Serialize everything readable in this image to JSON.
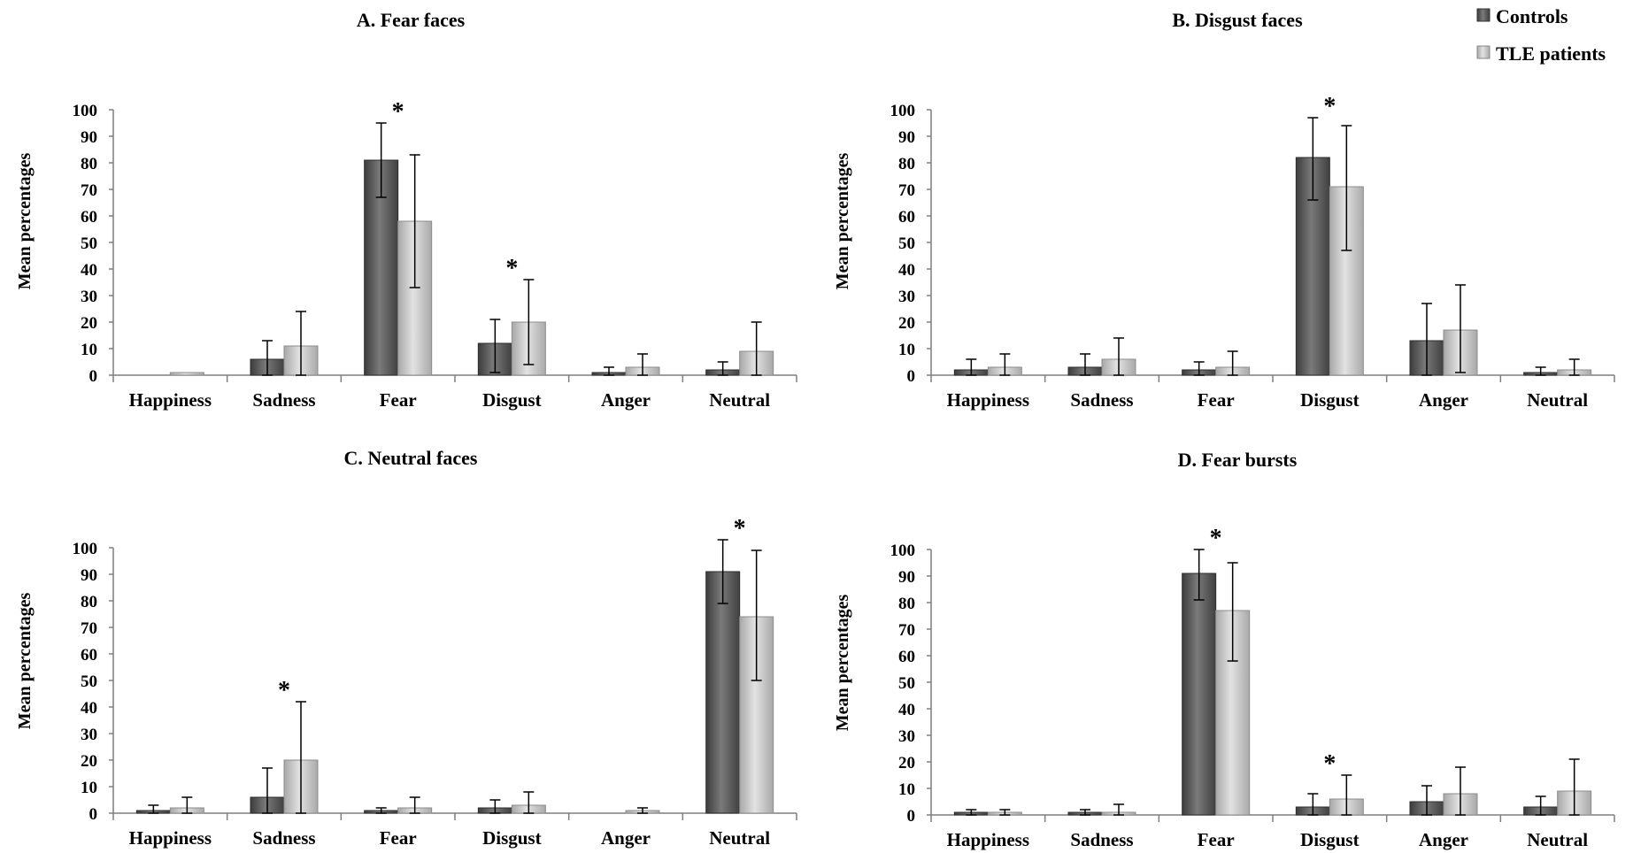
{
  "colors": {
    "controls": "#595959",
    "tle": "#bfbfbf",
    "axis": "#7f7f7f"
  },
  "legend": {
    "position": "top-right",
    "items": [
      {
        "name": "Controls",
        "color": "#595959"
      },
      {
        "name": "TLE patients",
        "color": "#bfbfbf"
      }
    ]
  },
  "chart_data": [
    {
      "type": "bar",
      "title": "A. Fear faces",
      "ylabel": "Mean percentages",
      "ylim": [
        0,
        100
      ],
      "yticks": [
        "0",
        "10",
        "20",
        "30",
        "40",
        "50",
        "60",
        "70",
        "80",
        "90",
        "100"
      ],
      "categories": [
        "Happiness",
        "Sadness",
        "Fear",
        "Disgust",
        "Anger",
        "Neutral"
      ],
      "series": [
        {
          "name": "Controls",
          "values": [
            0,
            6,
            81,
            12,
            1,
            2
          ],
          "err_low": [
            0,
            0,
            67,
            1,
            0,
            0
          ],
          "err_high": [
            0,
            13,
            95,
            21,
            3,
            5
          ]
        },
        {
          "name": "TLE patients",
          "values": [
            1,
            11,
            58,
            20,
            3,
            9
          ],
          "err_low": [
            0,
            0,
            33,
            4,
            0,
            0
          ],
          "err_high": [
            0,
            24,
            83,
            36,
            8,
            20
          ]
        }
      ],
      "significance": [
        false,
        false,
        true,
        true,
        false,
        false
      ]
    },
    {
      "type": "bar",
      "title": "B. Disgust faces",
      "ylabel": "Mean percentages",
      "ylim": [
        0,
        100
      ],
      "yticks": [
        "0",
        "10",
        "20",
        "30",
        "40",
        "50",
        "60",
        "70",
        "80",
        "90",
        "100"
      ],
      "categories": [
        "Happiness",
        "Sadness",
        "Fear",
        "Disgust",
        "Anger",
        "Neutral"
      ],
      "series": [
        {
          "name": "Controls",
          "values": [
            2,
            3,
            2,
            82,
            13,
            1
          ],
          "err_low": [
            0,
            0,
            0,
            66,
            0,
            0
          ],
          "err_high": [
            6,
            8,
            5,
            97,
            27,
            3
          ]
        },
        {
          "name": "TLE patients",
          "values": [
            3,
            6,
            3,
            71,
            17,
            2
          ],
          "err_low": [
            0,
            0,
            0,
            47,
            1,
            0
          ],
          "err_high": [
            8,
            14,
            9,
            94,
            34,
            6
          ]
        }
      ],
      "significance": [
        false,
        false,
        false,
        true,
        false,
        false
      ]
    },
    {
      "type": "bar",
      "title": "C. Neutral faces",
      "ylabel": "Mean percentages",
      "ylim": [
        0,
        100
      ],
      "yticks": [
        "0",
        "10",
        "20",
        "30",
        "40",
        "50",
        "60",
        "70",
        "80",
        "90",
        "100"
      ],
      "categories": [
        "Happiness",
        "Sadness",
        "Fear",
        "Disgust",
        "Anger",
        "Neutral"
      ],
      "series": [
        {
          "name": "Controls",
          "values": [
            1,
            6,
            1,
            2,
            0,
            91
          ],
          "err_low": [
            0,
            0,
            0,
            0,
            0,
            79
          ],
          "err_high": [
            3,
            17,
            2,
            5,
            0,
            103
          ]
        },
        {
          "name": "TLE patients",
          "values": [
            2,
            20,
            2,
            3,
            1,
            74
          ],
          "err_low": [
            0,
            0,
            0,
            0,
            0,
            50
          ],
          "err_high": [
            6,
            42,
            6,
            8,
            2,
            99
          ]
        }
      ],
      "significance": [
        false,
        true,
        false,
        false,
        false,
        true
      ]
    },
    {
      "type": "bar",
      "title": "D. Fear bursts",
      "ylabel": "Mean percentages",
      "ylim": [
        0,
        100
      ],
      "yticks": [
        "0",
        "10",
        "20",
        "30",
        "40",
        "50",
        "60",
        "70",
        "80",
        "90",
        "100"
      ],
      "categories": [
        "Happiness",
        "Sadness",
        "Fear",
        "Disgust",
        "Anger",
        "Neutral"
      ],
      "series": [
        {
          "name": "Controls",
          "values": [
            1,
            1,
            91,
            3,
            5,
            3
          ],
          "err_low": [
            0,
            0,
            81,
            0,
            0,
            0
          ],
          "err_high": [
            2,
            2,
            100,
            8,
            11,
            7
          ]
        },
        {
          "name": "TLE patients",
          "values": [
            1,
            1,
            77,
            6,
            8,
            9
          ],
          "err_low": [
            0,
            0,
            58,
            0,
            0,
            0
          ],
          "err_high": [
            2,
            4,
            95,
            15,
            18,
            21
          ]
        }
      ],
      "significance": [
        false,
        false,
        true,
        true,
        false,
        false
      ]
    }
  ]
}
